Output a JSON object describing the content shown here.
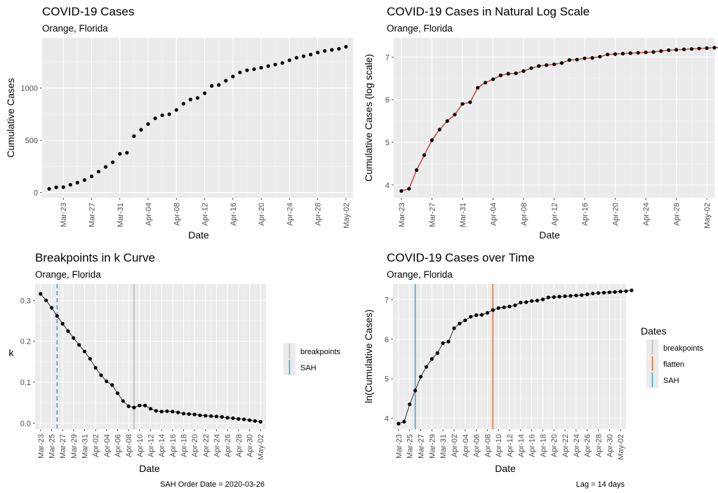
{
  "chart_data": [
    {
      "type": "scatter",
      "title": "COVID-19 Cases",
      "subtitle": "Orange, Florida",
      "xlabel": "Date",
      "ylabel": "Cumulative Cases",
      "x_ticks": [
        "Mar-23",
        "Mar-27",
        "Mar-31",
        "Apr-04",
        "Apr-08",
        "Apr-12",
        "Apr-16",
        "Apr-20",
        "Apr-24",
        "Apr-28",
        "May-02"
      ],
      "y_ticks": [
        "0",
        "500",
        "1000"
      ],
      "xlim": [
        "2020-03-20",
        "2020-05-03"
      ],
      "ylim": [
        -50,
        1480
      ],
      "grid": true,
      "x_start": "2020-03-21",
      "values": [
        35,
        50,
        52,
        75,
        95,
        120,
        155,
        200,
        245,
        290,
        370,
        380,
        540,
        600,
        655,
        710,
        740,
        750,
        790,
        850,
        890,
        905,
        950,
        1020,
        1030,
        1070,
        1110,
        1150,
        1170,
        1180,
        1195,
        1210,
        1225,
        1240,
        1265,
        1290,
        1305,
        1320,
        1340,
        1355,
        1365,
        1375,
        1395
      ]
    },
    {
      "type": "scatter",
      "title": "COVID-19 Cases in Natural Log Scale",
      "subtitle": "Orange, Florida",
      "xlabel": "Date",
      "ylabel": "Cumulative Cases (log scale)",
      "x_ticks": [
        "Mar-23",
        "Mar-27",
        "Mar-31",
        "Apr-04",
        "Apr-08",
        "Apr-12",
        "Apr-16",
        "Apr-20",
        "Apr-24",
        "Apr-28",
        "May-02"
      ],
      "y_ticks": [
        "4",
        "5",
        "6",
        "7"
      ],
      "xlim": [
        "2020-03-22",
        "2020-05-03"
      ],
      "ylim": [
        3.7,
        7.45
      ],
      "grid": true,
      "x_start": "2020-03-23",
      "values": [
        3.86,
        3.91,
        4.35,
        4.7,
        5.05,
        5.3,
        5.5,
        5.65,
        5.9,
        5.94,
        6.28,
        6.4,
        6.48,
        6.57,
        6.61,
        6.62,
        6.67,
        6.74,
        6.79,
        6.81,
        6.83,
        6.86,
        6.93,
        6.94,
        6.97,
        6.98,
        7.01,
        7.06,
        7.07,
        7.08,
        7.09,
        7.1,
        7.11,
        7.12,
        7.14,
        7.16,
        7.17,
        7.18,
        7.19,
        7.2,
        7.21,
        7.22,
        7.24
      ],
      "fit_color": "#c9514a"
    },
    {
      "type": "line",
      "title": "Breakpoints in k Curve",
      "subtitle": "Orange, Florida",
      "xlabel": "Date",
      "ylabel": "k",
      "caption": "SAH Order Date = 2020-03-26",
      "x_ticks": [
        "Mar-23",
        "Mar-25",
        "Mar-27",
        "Mar-29",
        "Mar-31",
        "Apr-02",
        "Apr-04",
        "Apr-06",
        "Apr-08",
        "Apr-10",
        "Apr-12",
        "Apr-14",
        "Apr-16",
        "Apr-18",
        "Apr-20",
        "Apr-22",
        "Apr-24",
        "Apr-26",
        "Apr-28",
        "Apr-30",
        "May-02"
      ],
      "y_ticks": [
        "0.0",
        "0.1",
        "0.2",
        "0.3"
      ],
      "xlim": [
        "2020-03-22",
        "2020-05-03"
      ],
      "ylim": [
        -0.015,
        0.34
      ],
      "grid": true,
      "x_start": "2020-03-23",
      "values": [
        0.316,
        0.3,
        0.282,
        0.262,
        0.243,
        0.225,
        0.208,
        0.191,
        0.175,
        0.157,
        0.135,
        0.117,
        0.102,
        0.093,
        0.073,
        0.054,
        0.041,
        0.038,
        0.043,
        0.043,
        0.035,
        0.03,
        0.028,
        0.029,
        0.028,
        0.026,
        0.023,
        0.022,
        0.021,
        0.019,
        0.018,
        0.017,
        0.016,
        0.015,
        0.013,
        0.012,
        0.01,
        0.009,
        0.007,
        0.005,
        0.003
      ],
      "sah_date": "2020-03-26",
      "breakpoint_date": "2020-04-09",
      "legend": {
        "items": [
          "breakpoints",
          "SAH"
        ],
        "position": "right"
      },
      "colors": {
        "breakpoints": "#bdbdbd",
        "SAH": "#47a3c7"
      }
    },
    {
      "type": "scatter",
      "title": "COVID-19 Cases over Time",
      "subtitle": "Orange, Florida",
      "xlabel": "Date",
      "ylabel": "ln(Cumulative Cases)",
      "caption": "Lag = 14 days",
      "x_ticks": [
        "Mar-23",
        "Mar-25",
        "Mar-27",
        "Mar-29",
        "Mar-31",
        "Apr-02",
        "Apr-04",
        "Apr-06",
        "Apr-08",
        "Apr-10",
        "Apr-12",
        "Apr-14",
        "Apr-16",
        "Apr-18",
        "Apr-20",
        "Apr-22",
        "Apr-24",
        "Apr-26",
        "Apr-28",
        "Apr-30",
        "May-02"
      ],
      "y_ticks": [
        "4",
        "5",
        "6",
        "7"
      ],
      "xlim": [
        "2020-03-22",
        "2020-05-03"
      ],
      "ylim": [
        3.72,
        7.4
      ],
      "grid": true,
      "x_start": "2020-03-23",
      "values": [
        3.86,
        3.91,
        4.35,
        4.7,
        5.05,
        5.3,
        5.5,
        5.65,
        5.9,
        5.94,
        6.28,
        6.4,
        6.48,
        6.57,
        6.61,
        6.62,
        6.67,
        6.74,
        6.79,
        6.81,
        6.83,
        6.86,
        6.93,
        6.94,
        6.97,
        6.98,
        7.01,
        7.06,
        7.07,
        7.08,
        7.09,
        7.1,
        7.11,
        7.12,
        7.14,
        7.16,
        7.17,
        7.18,
        7.19,
        7.2,
        7.21,
        7.22,
        7.24
      ],
      "sah_date": "2020-03-26",
      "flatten_date": "2020-04-09",
      "legend": {
        "title": "Dates",
        "items": [
          "breakpoints",
          "flatten",
          "SAH"
        ],
        "position": "right"
      },
      "colors": {
        "breakpoints": "#bdbdbd",
        "flatten": "#e8703a",
        "SAH": "#47a3c7"
      }
    }
  ]
}
